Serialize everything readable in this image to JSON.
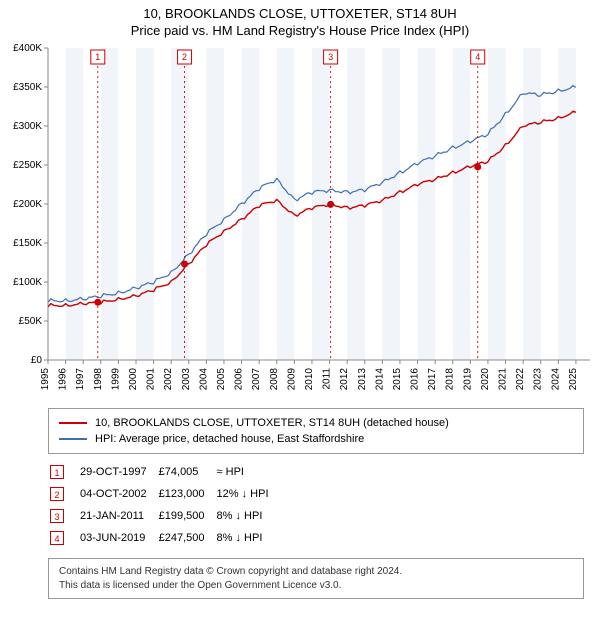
{
  "title_line1": "10, BROOKLANDS CLOSE, UTTOXETER, ST14 8UH",
  "title_line2": "Price paid vs. HM Land Registry's House Price Index (HPI)",
  "chart": {
    "type": "line",
    "x_years": [
      1995,
      1996,
      1997,
      1998,
      1999,
      2000,
      2001,
      2002,
      2003,
      2004,
      2005,
      2006,
      2007,
      2008,
      2009,
      2010,
      2011,
      2012,
      2013,
      2014,
      2015,
      2016,
      2017,
      2018,
      2019,
      2020,
      2021,
      2022,
      2023,
      2024,
      2025
    ],
    "xlim": [
      1995,
      2025.8
    ],
    "y_ticks": [
      0,
      50000,
      100000,
      150000,
      200000,
      250000,
      300000,
      350000,
      400000
    ],
    "y_tick_labels": [
      "£0",
      "£50K",
      "£100K",
      "£150K",
      "£200K",
      "£250K",
      "£300K",
      "£350K",
      "£400K"
    ],
    "ylim": [
      0,
      400000
    ],
    "plot_bg": "#ffffff",
    "band_color": "#f1f5fa",
    "grid_color": "#e0e0e0",
    "axis_color": "#888888",
    "tick_fontsize": 10,
    "series": {
      "subject": {
        "color": "#cc0000",
        "width": 1.4,
        "y": [
          70000,
          70000,
          72000,
          74000,
          78000,
          82000,
          90000,
          100000,
          123000,
          148000,
          165000,
          180000,
          198000,
          205000,
          185000,
          195000,
          200000,
          195000,
          198000,
          205000,
          215000,
          225000,
          232000,
          240000,
          248000,
          255000,
          275000,
          300000,
          305000,
          310000,
          318000
        ]
      },
      "hpi": {
        "color": "#3b6fb6",
        "width": 1.2,
        "y": [
          76000,
          76000,
          78000,
          82000,
          86000,
          92000,
          100000,
          112000,
          135000,
          162000,
          180000,
          200000,
          220000,
          232000,
          205000,
          215000,
          218000,
          215000,
          218000,
          228000,
          240000,
          252000,
          262000,
          272000,
          280000,
          290000,
          315000,
          342000,
          340000,
          345000,
          350000
        ]
      }
    },
    "sale_markers": [
      {
        "n": 1,
        "year": 1997.83,
        "price": 74005
      },
      {
        "n": 2,
        "year": 2002.76,
        "price": 123000
      },
      {
        "n": 3,
        "year": 2011.06,
        "price": 199500
      },
      {
        "n": 4,
        "year": 2019.42,
        "price": 247500
      }
    ],
    "marker_line_color": "#cc0000",
    "marker_box_border": "#cc0000",
    "marker_box_text": "#cc0000",
    "marker_dot_fill": "#cc0000"
  },
  "legend": {
    "items": [
      {
        "color": "#cc0000",
        "label": "10, BROOKLANDS CLOSE, UTTOXETER, ST14 8UH (detached house)"
      },
      {
        "color": "#3b6fb6",
        "label": "HPI: Average price, detached house, East Staffordshire"
      }
    ]
  },
  "sales": [
    {
      "n": "1",
      "date": "29-OCT-1997",
      "price": "£74,005",
      "delta": "≈ HPI"
    },
    {
      "n": "2",
      "date": "04-OCT-2002",
      "price": "£123,000",
      "delta": "12% ↓ HPI"
    },
    {
      "n": "3",
      "date": "21-JAN-2011",
      "price": "£199,500",
      "delta": "8% ↓ HPI"
    },
    {
      "n": "4",
      "date": "03-JUN-2019",
      "price": "£247,500",
      "delta": "8% ↓ HPI"
    }
  ],
  "footer_line1": "Contains HM Land Registry data © Crown copyright and database right 2024.",
  "footer_line2": "This data is licensed under the Open Government Licence v3.0."
}
